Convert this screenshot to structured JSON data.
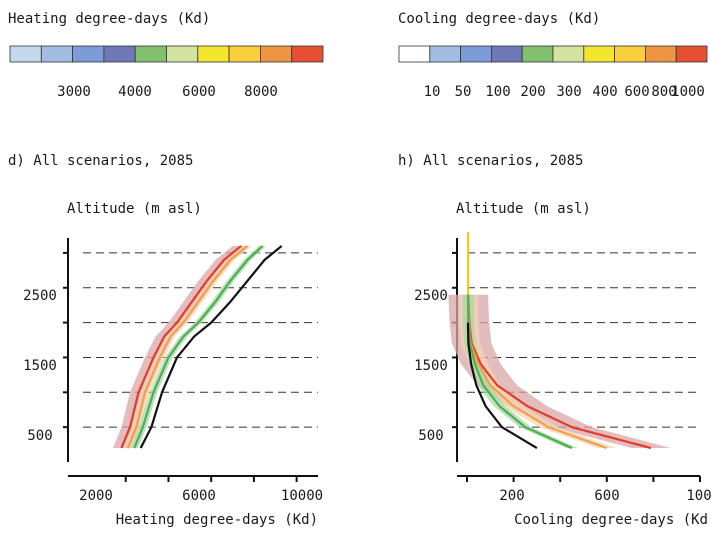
{
  "legends": [
    {
      "title": "Heating degree-days (Kd)",
      "colors": [
        "#c5d9ec",
        "#a3bde2",
        "#7d9bd8",
        "#6f79b9",
        "#82bf6e",
        "#d3e4a1",
        "#f2e72d",
        "#fbcf3c",
        "#ef9440",
        "#e55034"
      ],
      "tick_labels": [
        "3000",
        "4000",
        "6000",
        "8000"
      ]
    },
    {
      "title": "Cooling degree-days (Kd)",
      "colors": [
        "#ffffff",
        "#a3bde2",
        "#7d9bd8",
        "#6f79b9",
        "#82bf6e",
        "#d3e4a1",
        "#f2e72d",
        "#fbcf3c",
        "#ef9440",
        "#e55034"
      ],
      "tick_labels": [
        "10",
        "50",
        "100",
        "200",
        "300",
        "400",
        "600",
        "800",
        "1000"
      ]
    }
  ],
  "chart_data": [
    {
      "type": "line",
      "panel_title": "d) All scenarios, 2085",
      "ylabel": "Altitude (m asl)",
      "xlabel": "Heating degree-days (Kd)",
      "xticks": [
        "2000",
        "6000",
        "10000"
      ],
      "yticks": [
        "500",
        "1500",
        "2500"
      ],
      "xlim": [
        0,
        11000
      ],
      "ylim": [
        0,
        3300
      ],
      "grid": "dashed horizontal",
      "series": [
        {
          "color": "#e23c2a",
          "band_color": "#d9a7a7",
          "band_width": 800,
          "x": [
            1800,
            2200,
            2600,
            3300,
            3800,
            4400,
            5100,
            5800,
            6600,
            7400
          ],
          "y": [
            200,
            500,
            1000,
            1500,
            1800,
            2000,
            2300,
            2600,
            2900,
            3100
          ]
        },
        {
          "color": "#f0a04b",
          "band_color": "#f6d6b4",
          "band_width": 400,
          "x": [
            2100,
            2500,
            2900,
            3600,
            4100,
            4700,
            5400,
            6100,
            6900,
            7700
          ],
          "y": [
            200,
            500,
            1000,
            1500,
            1800,
            2000,
            2300,
            2600,
            2900,
            3100
          ]
        },
        {
          "color": "#4caf50",
          "band_color": "#a9d8a8",
          "band_width": 350,
          "x": [
            2400,
            2800,
            3300,
            4000,
            4700,
            5400,
            6200,
            6900,
            7700,
            8400
          ],
          "y": [
            200,
            500,
            1000,
            1500,
            1800,
            2000,
            2300,
            2600,
            2900,
            3100
          ]
        },
        {
          "color": "#111111",
          "band_color": "",
          "band_width": 0,
          "x": [
            2700,
            3200,
            3700,
            4400,
            5200,
            6000,
            6900,
            7700,
            8500,
            9300
          ],
          "y": [
            200,
            500,
            1000,
            1500,
            1800,
            2000,
            2300,
            2600,
            2900,
            3100
          ]
        }
      ]
    },
    {
      "type": "line",
      "panel_title": "h) All scenarios, 2085",
      "ylabel": "Altitude (m asl)",
      "xlabel": "Cooling degree-days (Kd",
      "xticks": [
        "200",
        "600",
        "100"
      ],
      "yticks": [
        "500",
        "1500",
        "2500"
      ],
      "xlim": [
        0,
        1000
      ],
      "ylim": [
        0,
        3300
      ],
      "grid": "dashed horizontal",
      "series": [
        {
          "color": "#f2c81e",
          "band_color": "",
          "band_width": 0,
          "x": [
            5,
            5,
            5,
            5,
            5,
            5
          ],
          "y": [
            2400,
            2600,
            2800,
            3000,
            3200,
            3300
          ]
        },
        {
          "color": "#e23c2a",
          "band_color": "#d9a7a7",
          "band_width": 170,
          "x": [
            790,
            450,
            260,
            130,
            60,
            20,
            10,
            5
          ],
          "y": [
            200,
            500,
            800,
            1100,
            1400,
            1700,
            2000,
            2400
          ]
        },
        {
          "color": "#f0a04b",
          "band_color": "#f6d6b4",
          "band_width": 80,
          "x": [
            600,
            350,
            200,
            100,
            50,
            15,
            8,
            5
          ],
          "y": [
            200,
            500,
            800,
            1100,
            1400,
            1700,
            2000,
            2400
          ]
        },
        {
          "color": "#4caf50",
          "band_color": "#a9d8a8",
          "band_width": 50,
          "x": [
            450,
            250,
            140,
            70,
            35,
            12,
            6,
            5
          ],
          "y": [
            200,
            500,
            800,
            1100,
            1400,
            1700,
            2000,
            2400
          ]
        },
        {
          "color": "#111111",
          "band_color": "",
          "band_width": 0,
          "x": [
            300,
            150,
            80,
            40,
            18,
            6,
            4
          ],
          "y": [
            200,
            500,
            800,
            1100,
            1400,
            1700,
            2000
          ]
        }
      ]
    }
  ]
}
